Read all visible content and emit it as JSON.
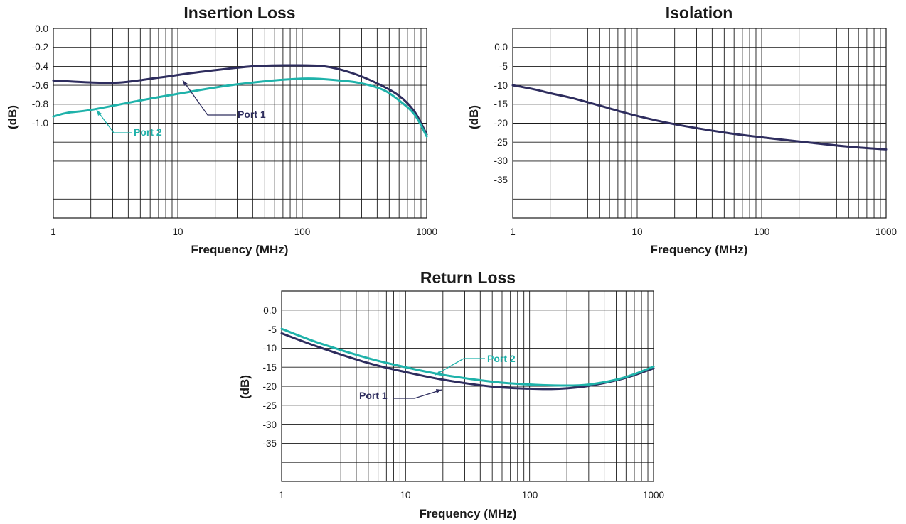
{
  "colors": {
    "port1": "#2e2d5e",
    "port2": "#1fb2aa",
    "grid": "#1a1a1a"
  },
  "chart_data": [
    {
      "type": "line",
      "title": "Insertion Loss",
      "xlabel": "Frequency (MHz)",
      "ylabel": "(dB)",
      "xscale": "log",
      "xlim": [
        1,
        1000
      ],
      "ylim": [
        -2.0,
        0.0
      ],
      "grid": true,
      "xticks": [
        "1",
        "10",
        "100",
        "1000"
      ],
      "yticks": [
        "0.0",
        "-0.2",
        "-0.4",
        "-0.6",
        "-0.8",
        "-1.0"
      ],
      "series": [
        {
          "name": "Port 1",
          "x": [
            1,
            2,
            3.5,
            7,
            15,
            40,
            80,
            150,
            250,
            400,
            600,
            800,
            1000
          ],
          "y": [
            -0.55,
            -0.57,
            -0.57,
            -0.52,
            -0.46,
            -0.4,
            -0.39,
            -0.4,
            -0.47,
            -0.58,
            -0.71,
            -0.88,
            -1.12
          ]
        },
        {
          "name": "Port 2",
          "x": [
            1,
            1.3,
            2,
            5,
            10,
            30,
            100,
            200,
            300,
            450,
            600,
            800,
            1000
          ],
          "y": [
            -0.93,
            -0.89,
            -0.86,
            -0.76,
            -0.69,
            -0.59,
            -0.53,
            -0.55,
            -0.58,
            -0.65,
            -0.76,
            -0.91,
            -1.14
          ]
        }
      ],
      "annotations": [
        "Port 1",
        "Port 2"
      ]
    },
    {
      "type": "line",
      "title": "Isolation",
      "xlabel": "Frequency (MHz)",
      "ylabel": "(dB)",
      "xscale": "log",
      "xlim": [
        1,
        1000
      ],
      "ylim": [
        -50,
        5
      ],
      "grid": true,
      "xticks": [
        "1",
        "10",
        "100",
        "1000"
      ],
      "yticks": [
        "0.0",
        "-5",
        "-10",
        "-15",
        "-20",
        "-25",
        "-30",
        "-35"
      ],
      "series": [
        {
          "x": [
            1,
            1.5,
            2,
            3,
            5,
            10,
            20,
            50,
            100,
            200,
            500,
            1000
          ],
          "y": [
            -11.5,
            -12.7,
            -13.8,
            -15.2,
            -17.4,
            -20.4,
            -22.8,
            -25.2,
            -26.6,
            -27.8,
            -29.3,
            -30.1
          ]
        }
      ]
    },
    {
      "type": "line",
      "title": "Return Loss",
      "xlabel": "Frequency (MHz)",
      "ylabel": "(dB)",
      "xscale": "log",
      "xlim": [
        1,
        1000
      ],
      "ylim": [
        -50,
        5
      ],
      "grid": true,
      "xticks": [
        "1",
        "10",
        "100",
        "1000"
      ],
      "yticks": [
        "0.0",
        "-5",
        "-10",
        "-15",
        "-20",
        "-25",
        "-30",
        "-35"
      ],
      "series": [
        {
          "name": "Port 1",
          "x": [
            1,
            2,
            5,
            10,
            20,
            50,
            100,
            150,
            200,
            300,
            500,
            700,
            1000
          ],
          "y": [
            -7.2,
            -11.2,
            -15.8,
            -18.4,
            -20.6,
            -22.6,
            -23.2,
            -23.3,
            -23.1,
            -22.4,
            -20.8,
            -19.3,
            -17.3
          ]
        },
        {
          "name": "Port 2",
          "x": [
            1,
            2,
            5,
            10,
            20,
            50,
            100,
            200,
            300,
            500,
            700,
            1000
          ],
          "y": [
            -5.9,
            -10.0,
            -14.4,
            -17.0,
            -19.2,
            -21.2,
            -22.0,
            -22.3,
            -22.0,
            -20.6,
            -19.0,
            -16.8
          ]
        }
      ],
      "annotations": [
        "Port 1",
        "Port 2"
      ]
    }
  ]
}
